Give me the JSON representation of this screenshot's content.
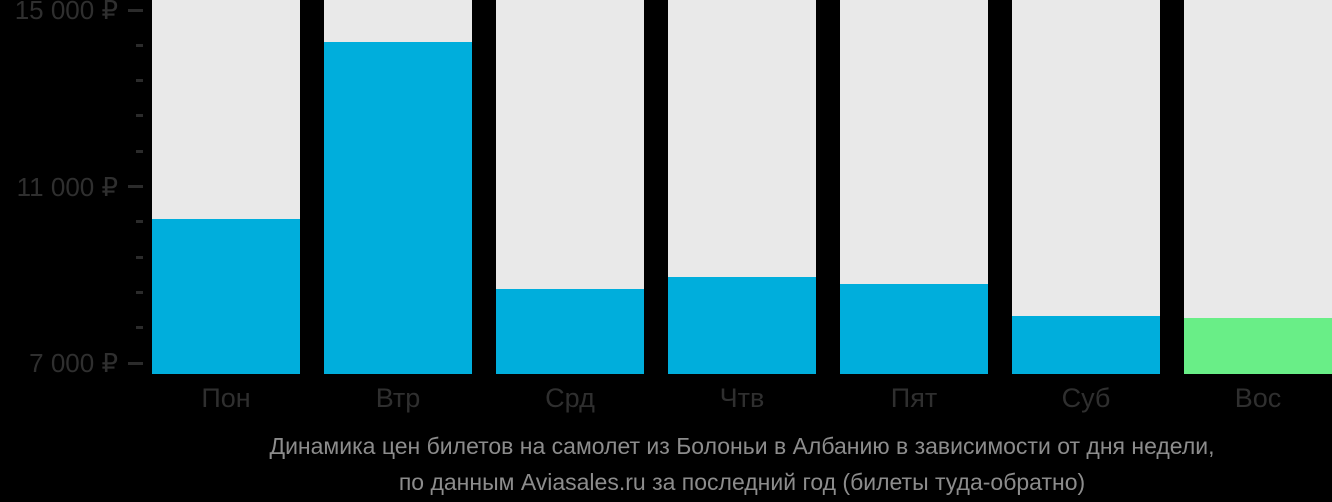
{
  "title_lines": [
    "Динамика цен билетов на самолет из Болоньи в Албанию в зависимости от дня недели,",
    "по данным Aviasales.ru за последний год (билеты туда-обратно)"
  ],
  "colors": {
    "background": "#000000",
    "column_background": "#E9E9E9",
    "bar_default": "#00AEDC",
    "bar_highlight": "#69EE87",
    "axis_text": "#2F2F2F",
    "tick_mark": "#2B2B2B",
    "title_text": "#8C8C8C"
  },
  "chart_data": {
    "type": "bar",
    "title": "Динамика цен билетов на самолет из Болоньи в Албанию в зависимости от дня недели, по данным Aviasales.ru за последний год (билеты туда-обратно)",
    "xlabel": "",
    "ylabel": "",
    "currency": "₽",
    "categories": [
      "Пон",
      "Втр",
      "Срд",
      "Чтв",
      "Пят",
      "Суб",
      "Вос"
    ],
    "values": [
      10270,
      14280,
      8680,
      8960,
      8780,
      8060,
      8010
    ],
    "bar_colors": [
      "#00AEDC",
      "#00AEDC",
      "#00AEDC",
      "#00AEDC",
      "#00AEDC",
      "#00AEDC",
      "#69EE87"
    ],
    "y_ticks": [
      {
        "value": 15000,
        "label": "15 000 ₽"
      },
      {
        "value": 11000,
        "label": "11 000 ₽"
      },
      {
        "value": 7000,
        "label": "7 000 ₽"
      }
    ],
    "minor_ticks_between_majors": 4,
    "ylim": [
      7000,
      15000
    ],
    "grid": false,
    "legend_position": "none"
  }
}
